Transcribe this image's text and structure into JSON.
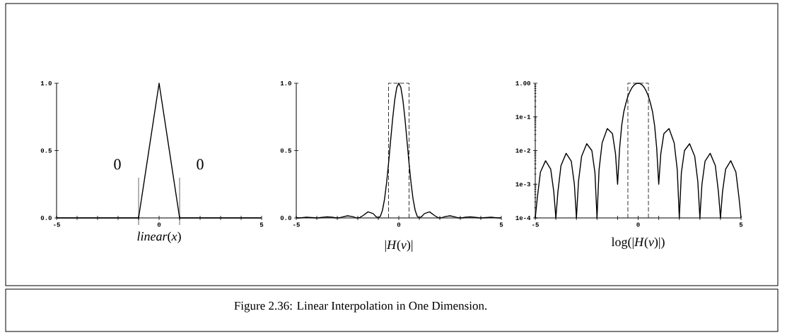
{
  "chart_data": [
    {
      "type": "line",
      "xlabel": "*linear*(*x*)",
      "xlim": [
        -5,
        5
      ],
      "ylim": [
        0,
        1
      ],
      "xticks": [
        -5,
        {
          "value": -4,
          "label": null
        },
        {
          "value": -3,
          "label": null
        },
        {
          "value": -2,
          "label": null
        },
        {
          "value": -1,
          "label": null
        },
        0,
        {
          "value": 1,
          "label": null
        },
        {
          "value": 2,
          "label": null
        },
        {
          "value": 3,
          "label": null
        },
        {
          "value": 4,
          "label": null
        },
        5
      ],
      "yticks": [
        {
          "value": 0,
          "label": "0.0"
        },
        {
          "value": 0.5,
          "label": "0.5"
        },
        {
          "value": 1,
          "label": "1.0"
        }
      ],
      "ref_lines": [
        {
          "axis": "x",
          "value": -1
        },
        {
          "axis": "x",
          "value": 1
        }
      ],
      "annotations": [
        "0",
        "0",
        "Figure 2.36: Linear Interpolation in One Dimension."
      ],
      "series": [
        {
          "color": "#000000",
          "x": [
            -5,
            -1,
            0,
            1,
            5
          ],
          "values": [
            0,
            0,
            1,
            0,
            0
          ]
        }
      ]
    },
    {
      "type": "line",
      "xlabel": "|*H*(*ν*)|",
      "xlim": [
        -5,
        5
      ],
      "ylim": [
        0,
        1
      ],
      "xticks": [
        -5,
        {
          "value": -4,
          "label": null
        },
        {
          "value": -3,
          "label": null
        },
        {
          "value": -2,
          "label": null
        },
        {
          "value": -1,
          "label": null
        },
        0,
        {
          "value": 1,
          "label": null
        },
        {
          "value": 2,
          "label": null
        },
        {
          "value": 3,
          "label": null
        },
        {
          "value": 4,
          "label": null
        },
        5
      ],
      "yticks": [
        {
          "value": 0,
          "label": "0.0"
        },
        {
          "value": 0.5,
          "label": "0.5"
        },
        {
          "value": 1,
          "label": "1.0"
        }
      ],
      "series": [
        {
          "color": "#000000",
          "x": [
            -5,
            -4.9,
            -4.75,
            -4.5,
            -4.25,
            -4.1,
            -4,
            -3.9,
            -3.75,
            -3.5,
            -3.25,
            -3.1,
            -3,
            -2.9,
            -2.75,
            -2.5,
            -2.25,
            -2.1,
            -2,
            -1.9,
            -1.75,
            -1.5,
            -1.25,
            -1.1,
            -1,
            -0.9,
            -0.8,
            -0.7,
            -0.6,
            -0.5,
            -0.4,
            -0.3,
            -0.2,
            -0.1,
            0,
            0.1,
            0.2,
            0.3,
            0.4,
            0.5,
            0.6,
            0.7,
            0.8,
            0.9,
            1,
            1.1,
            1.25,
            1.5,
            1.75,
            1.9,
            2,
            2.1,
            2.25,
            2.5,
            2.75,
            2.9,
            3,
            3.1,
            3.25,
            3.5,
            3.75,
            3.9,
            4,
            4.1,
            4.25,
            4.5,
            4.75,
            4.9,
            5
          ],
          "values": [
            0,
            0,
            0.002,
            0.005,
            0.003,
            0.001,
            0,
            0.001,
            0.004,
            0.008,
            0.005,
            0.001,
            0,
            0.001,
            0.007,
            0.016,
            0.01,
            0.002,
            0,
            0.003,
            0.017,
            0.045,
            0.032,
            0.008,
            0,
            0.012,
            0.055,
            0.135,
            0.255,
            0.405,
            0.573,
            0.737,
            0.875,
            0.968,
            1,
            0.968,
            0.875,
            0.737,
            0.573,
            0.405,
            0.255,
            0.135,
            0.055,
            0.012,
            0,
            0.008,
            0.032,
            0.045,
            0.017,
            0.003,
            0,
            0.002,
            0.01,
            0.016,
            0.007,
            0.001,
            0,
            0.001,
            0.005,
            0.008,
            0.004,
            0.001,
            0,
            0.001,
            0.003,
            0.005,
            0.002,
            0,
            0
          ]
        },
        {
          "color": "#000000",
          "line_style": "dashed",
          "x": [
            -0.5,
            -0.5,
            0.5,
            0.5
          ],
          "values": [
            0,
            1,
            1,
            0
          ]
        }
      ]
    },
    {
      "type": "line",
      "xlabel": "log(|*H*(*ν*)|)",
      "log": "y",
      "xlim": [
        -5,
        5
      ],
      "ylim": [
        0.0001,
        1
      ],
      "xticks": [
        -5,
        {
          "value": -4,
          "label": null
        },
        {
          "value": -3,
          "label": null
        },
        {
          "value": -2,
          "label": null
        },
        {
          "value": -1,
          "label": null
        },
        0,
        {
          "value": 1,
          "label": null
        },
        {
          "value": 2,
          "label": null
        },
        {
          "value": 3,
          "label": null
        },
        {
          "value": 4,
          "label": null
        },
        5
      ],
      "yticks": [
        {
          "value": 0.0001,
          "label": "1e-4"
        },
        {
          "value": 0.001,
          "label": "1e-3"
        },
        {
          "value": 0.01,
          "label": "1e-2"
        },
        {
          "value": 0.1,
          "label": "1e-1"
        },
        {
          "value": 1,
          "label": "1.00"
        }
      ],
      "series": [
        {
          "color": "#000000",
          "x": [
            -5,
            -4.9,
            -4.75,
            -4.5,
            -4.25,
            -4.1,
            -4,
            -3.9,
            -3.75,
            -3.5,
            -3.25,
            -3.1,
            -3,
            -2.9,
            -2.75,
            -2.5,
            -2.25,
            -2.1,
            -2,
            -1.9,
            -1.75,
            -1.5,
            -1.25,
            -1.1,
            -1,
            -0.9,
            -0.8,
            -0.7,
            -0.6,
            -0.5,
            -0.4,
            -0.3,
            -0.2,
            -0.1,
            0,
            0.1,
            0.2,
            0.3,
            0.4,
            0.5,
            0.6,
            0.7,
            0.8,
            0.9,
            1,
            1.1,
            1.25,
            1.5,
            1.75,
            1.9,
            2,
            2.1,
            2.25,
            2.5,
            2.75,
            2.9,
            3,
            3.1,
            3.25,
            3.5,
            3.75,
            3.9,
            4,
            4.1,
            4.25,
            4.5,
            4.75,
            4.9,
            5
          ],
          "values": [
            0.0001,
            0.0004,
            0.0023,
            0.005,
            0.0028,
            0.0006,
            0.0001,
            0.0006,
            0.0036,
            0.0083,
            0.0048,
            0.001,
            0.0001,
            0.0012,
            0.0067,
            0.016,
            0.01,
            0.0022,
            0.0001,
            0.0027,
            0.017,
            0.045,
            0.032,
            0.008,
            0.001,
            0.012,
            0.055,
            0.14,
            0.25,
            0.41,
            0.57,
            0.74,
            0.88,
            0.97,
            1,
            0.97,
            0.88,
            0.74,
            0.57,
            0.41,
            0.25,
            0.14,
            0.055,
            0.012,
            0.001,
            0.008,
            0.032,
            0.045,
            0.017,
            0.0027,
            0.0001,
            0.0022,
            0.01,
            0.016,
            0.0067,
            0.0012,
            0.0001,
            0.001,
            0.0048,
            0.0083,
            0.0036,
            0.0006,
            0.0001,
            0.0006,
            0.0028,
            0.005,
            0.0023,
            0.0004,
            0.0001
          ]
        },
        {
          "color": "#000000",
          "line_style": "dashed",
          "x": [
            -0.5,
            -0.5,
            0.5,
            0.5
          ],
          "values": [
            0.0001,
            1,
            1,
            0.0001
          ]
        }
      ]
    }
  ]
}
